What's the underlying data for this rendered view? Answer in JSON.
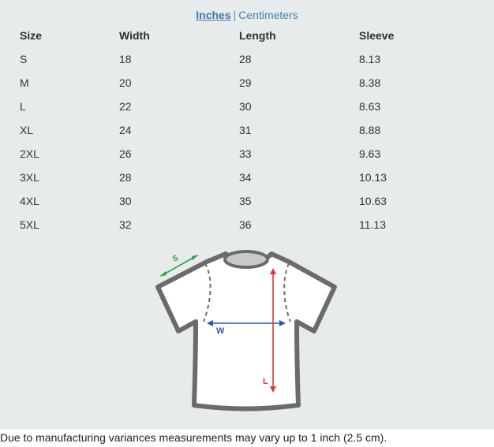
{
  "units": {
    "inches": "Inches",
    "separator": "|",
    "centimeters": "Centimeters"
  },
  "table": {
    "headers": [
      "Size",
      "Width",
      "Length",
      "Sleeve"
    ],
    "rows": [
      [
        "S",
        "18",
        "28",
        "8.13"
      ],
      [
        "M",
        "20",
        "29",
        "8.38"
      ],
      [
        "L",
        "22",
        "30",
        "8.63"
      ],
      [
        "XL",
        "24",
        "31",
        "8.88"
      ],
      [
        "2XL",
        "26",
        "33",
        "9.63"
      ],
      [
        "3XL",
        "28",
        "34",
        "10.13"
      ],
      [
        "4XL",
        "30",
        "35",
        "10.63"
      ],
      [
        "5XL",
        "32",
        "36",
        "11.13"
      ]
    ]
  },
  "diagram": {
    "sleeve_letter": "S",
    "width_letter": "W",
    "length_letter": "L",
    "colors": {
      "sleeve": "#2aa84a",
      "width": "#2f56a6",
      "length": "#d83a3a",
      "outline": "#6b6b6b",
      "fill": "#ffffff",
      "collar": "#c9c9c9"
    }
  },
  "note": "Due to manufacturing variances measurements may vary up to 1 inch (2.5 cm)."
}
